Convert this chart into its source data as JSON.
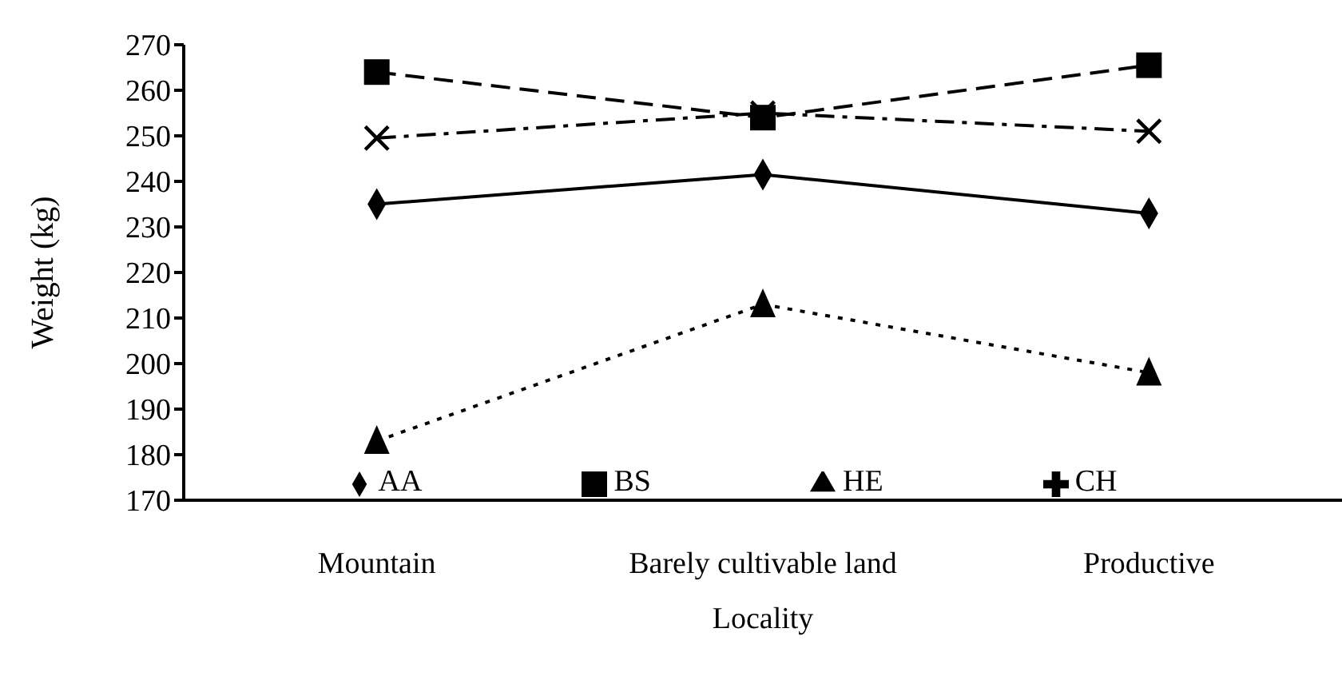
{
  "chart_data": {
    "type": "line",
    "xlabel": "Locality",
    "ylabel": "Weight (kg)",
    "categories": [
      "Mountain",
      "Barely cultivable land",
      "Productive"
    ],
    "series": [
      {
        "name": "AA",
        "color": "#000000",
        "values": [
          235,
          241.5,
          233
        ],
        "marker": "diamond",
        "line_style": "solid"
      },
      {
        "name": "BS",
        "color": "#000000",
        "values": [
          264,
          254,
          265.5
        ],
        "marker": "square",
        "line_style": "dashed"
      },
      {
        "name": "HE",
        "color": "#000000",
        "values": [
          183,
          213,
          198
        ],
        "marker": "triangle",
        "line_style": "dotted"
      },
      {
        "name": "CH",
        "color": "#000000",
        "values": [
          249.5,
          255,
          251
        ],
        "marker": "cross",
        "line_style": "dashdot"
      }
    ],
    "ylim": [
      170,
      270
    ],
    "yticks": [
      170,
      180,
      190,
      200,
      210,
      220,
      230,
      240,
      250,
      260,
      270
    ],
    "grid": false,
    "legend": "bottom"
  }
}
